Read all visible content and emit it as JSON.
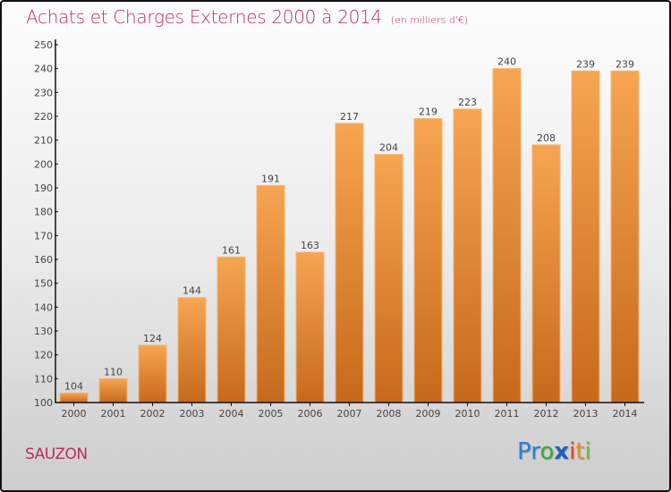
{
  "header": {
    "title": "Achats et Charges Externes 2000 à 2014",
    "unit": "(en milliers d'€)"
  },
  "footer": {
    "place": "SAUZON",
    "logo": [
      {
        "ch": "P",
        "color": "#2a7fd4"
      },
      {
        "ch": "r",
        "color": "#2a7fd4"
      },
      {
        "ch": "o",
        "color": "#3aa83a"
      },
      {
        "ch": "x",
        "color": "#1e5fbf"
      },
      {
        "ch": "i",
        "color": "#e6461e"
      },
      {
        "ch": "t",
        "color": "#f08a1a"
      },
      {
        "ch": "i",
        "color": "#7ab82e"
      }
    ]
  },
  "colors": {
    "bar_top": "#f7a552",
    "bar_bottom": "#c7691c",
    "title": "#b8305a"
  },
  "chart_data": {
    "type": "bar",
    "title": "Achats et Charges Externes 2000 à 2014 (en milliers d'€)",
    "xlabel": "",
    "ylabel": "",
    "categories": [
      "2000",
      "2001",
      "2002",
      "2003",
      "2004",
      "2005",
      "2006",
      "2007",
      "2008",
      "2009",
      "2010",
      "2011",
      "2012",
      "2013",
      "2014"
    ],
    "values": [
      104,
      110,
      124,
      144,
      161,
      191,
      163,
      217,
      204,
      219,
      223,
      240,
      208,
      239,
      239
    ],
    "ylim": [
      100,
      250
    ],
    "yticks": [
      100,
      110,
      120,
      130,
      140,
      150,
      160,
      170,
      180,
      190,
      200,
      210,
      220,
      230,
      240,
      250
    ],
    "grid": false,
    "legend": "none"
  }
}
